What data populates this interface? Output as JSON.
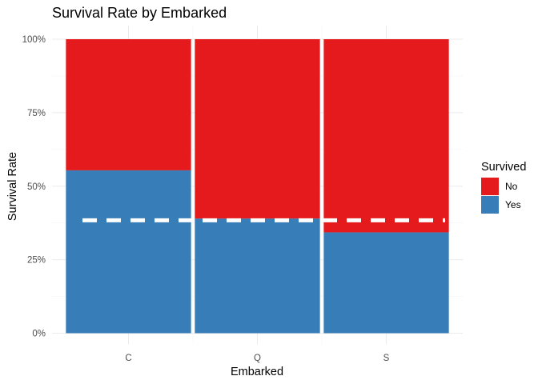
{
  "chart_data": {
    "type": "bar",
    "stacked": true,
    "percent_scale": true,
    "title": "Survival Rate by Embarked",
    "xlabel": "Embarked",
    "ylabel": "Survival Rate",
    "categories": [
      "C",
      "Q",
      "S"
    ],
    "series": [
      {
        "name": "No",
        "color": "#E41A1C",
        "values": [
          0.446,
          0.61,
          0.657
        ]
      },
      {
        "name": "Yes",
        "color": "#377EB8",
        "values": [
          0.554,
          0.39,
          0.343
        ]
      }
    ],
    "stack_order": [
      "Yes",
      "No"
    ],
    "reference_line": {
      "value": 0.384,
      "style": "dashed",
      "color": "#ffffff"
    },
    "ylim": [
      0,
      1
    ],
    "yticks": [
      0,
      0.25,
      0.5,
      0.75,
      1.0
    ],
    "ytick_labels": [
      "0%",
      "25%",
      "50%",
      "75%",
      "100%"
    ],
    "grid": true,
    "legend": {
      "title": "Survived",
      "position": "right",
      "items": [
        "No",
        "Yes"
      ]
    }
  }
}
